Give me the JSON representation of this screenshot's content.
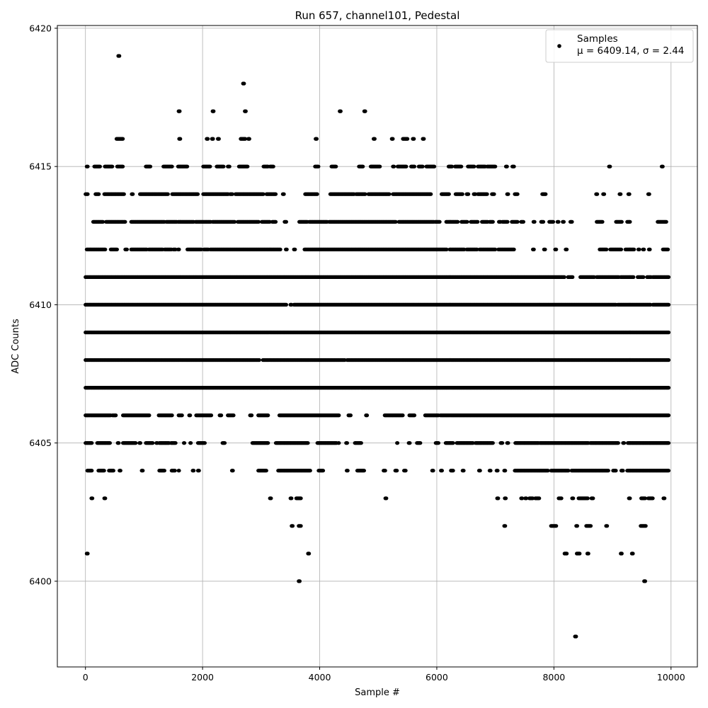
{
  "chart_data": {
    "type": "scatter",
    "title": "Run 657, channel101, Pedestal",
    "xlabel": "Sample #",
    "ylabel": "ADC Counts",
    "xlim": [
      -480,
      10450
    ],
    "ylim": [
      6396.9,
      6420.1
    ],
    "xticks": [
      0,
      2000,
      4000,
      6000,
      8000,
      10000
    ],
    "yticks": [
      6400,
      6405,
      6410,
      6415,
      6420
    ],
    "grid": true,
    "legend": {
      "placement": "upper right",
      "entries": [
        {
          "marker": "point",
          "label_line1": "Samples",
          "label_line2": "μ = 6409.14, σ = 2.44"
        }
      ]
    },
    "marker_color": "#000000",
    "sample_count": 10000,
    "level_segments": [
      {
        "y": 6420,
        "ranges": []
      },
      {
        "y": 6419,
        "ranges": [
          [
            560,
            580
          ]
        ]
      },
      {
        "y": 6418,
        "ranges": [
          [
            2690,
            2710
          ]
        ]
      },
      {
        "y": 6417,
        "ranges": [
          [
            1590,
            1610
          ],
          [
            2170,
            2190
          ],
          [
            2720,
            2740
          ],
          [
            4340,
            4360
          ],
          [
            4760,
            4780
          ]
        ]
      },
      {
        "y": 6416,
        "ranges": [
          [
            530,
            640
          ],
          [
            1600,
            1620
          ],
          [
            2070,
            2090
          ],
          [
            2160,
            2180
          ],
          [
            2260,
            2280
          ],
          [
            2650,
            2730
          ],
          [
            2780,
            2800
          ],
          [
            3930,
            3950
          ],
          [
            4920,
            4940
          ],
          [
            5230,
            5250
          ],
          [
            5420,
            5500
          ],
          [
            5590,
            5610
          ],
          [
            5760,
            5780
          ]
        ]
      },
      {
        "y": 6415,
        "ranges": [
          [
            20,
            40
          ],
          [
            150,
            250
          ],
          [
            330,
            460
          ],
          [
            540,
            640
          ],
          [
            1030,
            1110
          ],
          [
            1330,
            1480
          ],
          [
            1580,
            1740
          ],
          [
            2010,
            2130
          ],
          [
            2240,
            2360
          ],
          [
            2430,
            2460
          ],
          [
            2620,
            2770
          ],
          [
            3040,
            3120
          ],
          [
            3150,
            3210
          ],
          [
            3920,
            3980
          ],
          [
            4200,
            4280
          ],
          [
            4670,
            4740
          ],
          [
            4870,
            5030
          ],
          [
            5250,
            5270
          ],
          [
            5330,
            5480
          ],
          [
            5560,
            5620
          ],
          [
            5690,
            5760
          ],
          [
            5820,
            5960
          ],
          [
            6200,
            6260
          ],
          [
            6310,
            6420
          ],
          [
            6530,
            6640
          ],
          [
            6700,
            6830
          ],
          [
            6860,
            7000
          ],
          [
            7180,
            7200
          ],
          [
            7290,
            7320
          ],
          [
            8940,
            8960
          ],
          [
            9840,
            9860
          ]
        ]
      },
      {
        "y": 6414,
        "ranges": [
          [
            0,
            40
          ],
          [
            170,
            230
          ],
          [
            320,
            660
          ],
          [
            790,
            810
          ],
          [
            930,
            1410
          ],
          [
            1480,
            1920
          ],
          [
            2010,
            2440
          ],
          [
            2470,
            2510
          ],
          [
            2560,
            3040
          ],
          [
            3090,
            3250
          ],
          [
            3370,
            3390
          ],
          [
            3750,
            3960
          ],
          [
            4180,
            4590
          ],
          [
            4620,
            4780
          ],
          [
            4830,
            5190
          ],
          [
            5250,
            5760
          ],
          [
            5770,
            5900
          ],
          [
            6080,
            6210
          ],
          [
            6320,
            6440
          ],
          [
            6510,
            6540
          ],
          [
            6630,
            6660
          ],
          [
            6700,
            6860
          ],
          [
            6940,
            6980
          ],
          [
            7200,
            7220
          ],
          [
            7330,
            7380
          ],
          [
            7800,
            7860
          ],
          [
            8720,
            8740
          ],
          [
            8840,
            8860
          ],
          [
            9120,
            9140
          ],
          [
            9270,
            9290
          ],
          [
            9610,
            9630
          ]
        ]
      },
      {
        "y": 6413,
        "ranges": [
          [
            130,
            300
          ],
          [
            350,
            680
          ],
          [
            780,
            1350
          ],
          [
            1380,
            1560
          ],
          [
            1580,
            1850
          ],
          [
            1880,
            2140
          ],
          [
            2170,
            2550
          ],
          [
            2600,
            2960
          ],
          [
            3010,
            3150
          ],
          [
            3190,
            3250
          ],
          [
            3400,
            3430
          ],
          [
            3650,
            3790
          ],
          [
            3820,
            4130
          ],
          [
            4160,
            5300
          ],
          [
            5350,
            5950
          ],
          [
            5970,
            6050
          ],
          [
            6160,
            6250
          ],
          [
            6260,
            6360
          ],
          [
            6420,
            6520
          ],
          [
            6580,
            6700
          ],
          [
            6770,
            6870
          ],
          [
            6900,
            6960
          ],
          [
            7060,
            7090
          ],
          [
            7120,
            7210
          ],
          [
            7280,
            7380
          ],
          [
            7440,
            7480
          ],
          [
            7650,
            7670
          ],
          [
            7780,
            7820
          ],
          [
            7920,
            7990
          ],
          [
            8060,
            8080
          ],
          [
            8150,
            8170
          ],
          [
            8280,
            8310
          ],
          [
            8730,
            8830
          ],
          [
            9060,
            9160
          ],
          [
            9250,
            9300
          ],
          [
            9770,
            9920
          ]
        ]
      },
      {
        "y": 6412,
        "ranges": [
          [
            20,
            340
          ],
          [
            430,
            540
          ],
          [
            680,
            710
          ],
          [
            780,
            1050
          ],
          [
            1080,
            1320
          ],
          [
            1350,
            1470
          ],
          [
            1500,
            1540
          ],
          [
            1580,
            1600
          ],
          [
            1740,
            1980
          ],
          [
            2020,
            2100
          ],
          [
            2130,
            3030
          ],
          [
            3040,
            3330
          ],
          [
            3420,
            3440
          ],
          [
            3560,
            3580
          ],
          [
            3740,
            6170
          ],
          [
            6220,
            6470
          ],
          [
            6510,
            6690
          ],
          [
            6730,
            7000
          ],
          [
            7050,
            7320
          ],
          [
            7640,
            7660
          ],
          [
            7830,
            7850
          ],
          [
            8020,
            8040
          ],
          [
            8200,
            8220
          ],
          [
            8780,
            8900
          ],
          [
            8960,
            9150
          ],
          [
            9220,
            9370
          ],
          [
            9440,
            9460
          ],
          [
            9520,
            9540
          ],
          [
            9620,
            9640
          ],
          [
            9860,
            9950
          ]
        ]
      },
      {
        "y": 6411,
        "ranges": [
          [
            0,
            8180
          ],
          [
            8240,
            8320
          ],
          [
            8450,
            8690
          ],
          [
            8730,
            9110
          ],
          [
            9140,
            9360
          ],
          [
            9430,
            9530
          ],
          [
            9590,
            9660
          ],
          [
            9690,
            9960
          ]
        ]
      },
      {
        "y": 6410,
        "ranges": [
          [
            0,
            3430
          ],
          [
            3500,
            3520
          ],
          [
            3560,
            9060
          ],
          [
            9090,
            9650
          ],
          [
            9690,
            9960
          ]
        ]
      },
      {
        "y": 6409,
        "ranges": [
          [
            0,
            9960
          ]
        ]
      },
      {
        "y": 6408,
        "ranges": [
          [
            0,
            2970
          ],
          [
            3030,
            4430
          ],
          [
            4470,
            9960
          ]
        ]
      },
      {
        "y": 6407,
        "ranges": [
          [
            0,
            9960
          ]
        ]
      },
      {
        "y": 6406,
        "ranges": [
          [
            0,
            430
          ],
          [
            460,
            520
          ],
          [
            640,
            1090
          ],
          [
            1250,
            1480
          ],
          [
            1590,
            1650
          ],
          [
            1770,
            1790
          ],
          [
            1890,
            2150
          ],
          [
            2290,
            2320
          ],
          [
            2430,
            2530
          ],
          [
            2810,
            2840
          ],
          [
            2950,
            3120
          ],
          [
            3310,
            4330
          ],
          [
            4490,
            4530
          ],
          [
            4790,
            4810
          ],
          [
            5110,
            5420
          ],
          [
            5530,
            5620
          ],
          [
            5800,
            6030
          ],
          [
            6060,
            7950
          ],
          [
            7970,
            9960
          ]
        ]
      },
      {
        "y": 6405,
        "ranges": [
          [
            0,
            80
          ],
          [
            90,
            110
          ],
          [
            200,
            300
          ],
          [
            310,
            420
          ],
          [
            550,
            570
          ],
          [
            640,
            860
          ],
          [
            920,
            940
          ],
          [
            1030,
            1150
          ],
          [
            1210,
            1230
          ],
          [
            1260,
            1430
          ],
          [
            1460,
            1540
          ],
          [
            1680,
            1690
          ],
          [
            1790,
            1800
          ],
          [
            1920,
            2040
          ],
          [
            2340,
            2380
          ],
          [
            2850,
            3120
          ],
          [
            3250,
            3800
          ],
          [
            3960,
            4290
          ],
          [
            4320,
            4330
          ],
          [
            4450,
            4470
          ],
          [
            4600,
            4710
          ],
          [
            5320,
            5330
          ],
          [
            5520,
            5540
          ],
          [
            5660,
            5720
          ],
          [
            5980,
            6030
          ],
          [
            6150,
            6280
          ],
          [
            6340,
            6620
          ],
          [
            6660,
            6960
          ],
          [
            7090,
            7120
          ],
          [
            7200,
            7220
          ],
          [
            7340,
            7740
          ],
          [
            7760,
            8590
          ],
          [
            8620,
            9100
          ],
          [
            9180,
            9200
          ],
          [
            9260,
            9960
          ]
        ]
      },
      {
        "y": 6404,
        "ranges": [
          [
            30,
            110
          ],
          [
            220,
            320
          ],
          [
            400,
            480
          ],
          [
            580,
            600
          ],
          [
            960,
            980
          ],
          [
            1260,
            1350
          ],
          [
            1470,
            1530
          ],
          [
            1590,
            1600
          ],
          [
            1830,
            1850
          ],
          [
            1920,
            1940
          ],
          [
            2500,
            2520
          ],
          [
            2950,
            3090
          ],
          [
            3290,
            3840
          ],
          [
            3980,
            4060
          ],
          [
            4460,
            4480
          ],
          [
            4640,
            4760
          ],
          [
            5090,
            5120
          ],
          [
            5290,
            5320
          ],
          [
            5440,
            5470
          ],
          [
            5920,
            5940
          ],
          [
            6070,
            6090
          ],
          [
            6240,
            6280
          ],
          [
            6440,
            6460
          ],
          [
            6720,
            6740
          ],
          [
            6900,
            6920
          ],
          [
            7020,
            7040
          ],
          [
            7150,
            7170
          ],
          [
            7330,
            7900
          ],
          [
            7950,
            8250
          ],
          [
            8300,
            8930
          ],
          [
            9010,
            9060
          ],
          [
            9150,
            9180
          ],
          [
            9250,
            9960
          ]
        ]
      },
      {
        "y": 6403,
        "ranges": [
          [
            100,
            120
          ],
          [
            320,
            340
          ],
          [
            3150,
            3170
          ],
          [
            3500,
            3520
          ],
          [
            3600,
            3680
          ],
          [
            5120,
            5140
          ],
          [
            7030,
            7050
          ],
          [
            7160,
            7180
          ],
          [
            7440,
            7460
          ],
          [
            7510,
            7530
          ],
          [
            7580,
            7640
          ],
          [
            7680,
            7750
          ],
          [
            8080,
            8130
          ],
          [
            8310,
            8330
          ],
          [
            8420,
            8580
          ],
          [
            8640,
            8670
          ],
          [
            9280,
            9300
          ],
          [
            9490,
            9560
          ],
          [
            9610,
            9690
          ],
          [
            9870,
            9890
          ]
        ]
      },
      {
        "y": 6402,
        "ranges": [
          [
            3520,
            3540
          ],
          [
            3640,
            3680
          ],
          [
            7150,
            7170
          ],
          [
            7950,
            8040
          ],
          [
            8380,
            8400
          ],
          [
            8550,
            8630
          ],
          [
            8890,
            8910
          ],
          [
            9480,
            9570
          ]
        ]
      },
      {
        "y": 6401,
        "ranges": [
          [
            20,
            40
          ],
          [
            3800,
            3820
          ],
          [
            8180,
            8220
          ],
          [
            8390,
            8440
          ],
          [
            8570,
            8590
          ],
          [
            9140,
            9160
          ],
          [
            9330,
            9350
          ]
        ]
      },
      {
        "y": 6400,
        "ranges": [
          [
            3640,
            3660
          ],
          [
            9540,
            9560
          ]
        ]
      },
      {
        "y": 6399,
        "ranges": []
      },
      {
        "y": 6398,
        "ranges": [
          [
            8360,
            8380
          ]
        ]
      }
    ]
  }
}
